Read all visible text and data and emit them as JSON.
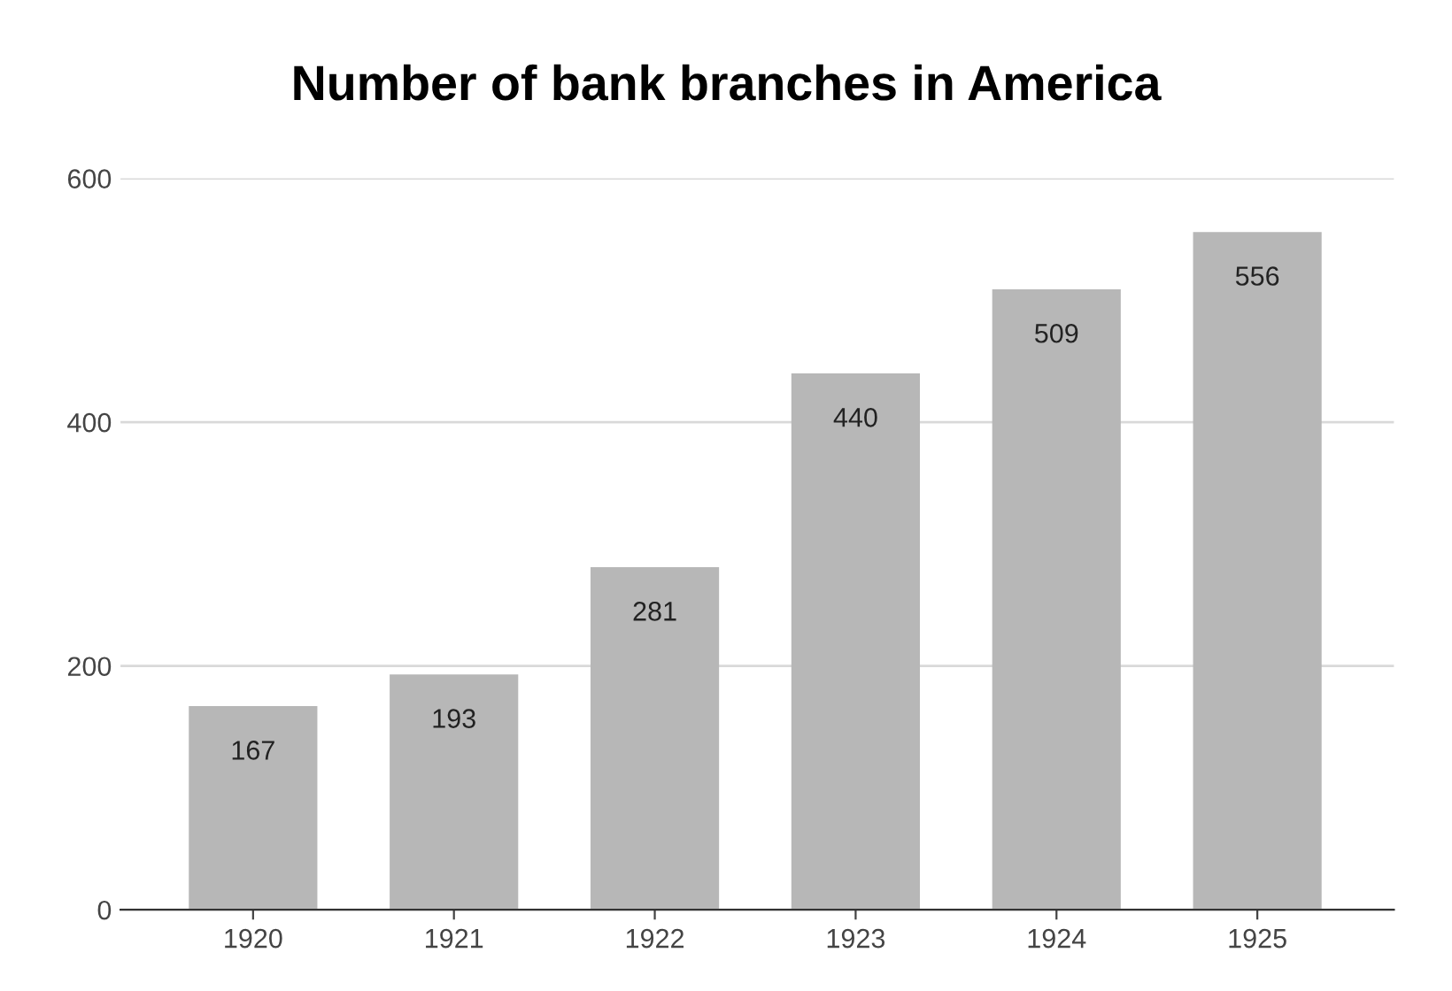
{
  "chart_data": {
    "type": "bar",
    "title": "Number of bank branches in America",
    "categories": [
      "1920",
      "1921",
      "1922",
      "1923",
      "1924",
      "1925"
    ],
    "values": [
      167,
      193,
      281,
      440,
      509,
      556
    ],
    "color": "#b7b7b7",
    "ylim": [
      0,
      600
    ],
    "yticks": [
      0,
      200,
      400,
      600
    ],
    "grid": "y",
    "data_labels": true
  }
}
